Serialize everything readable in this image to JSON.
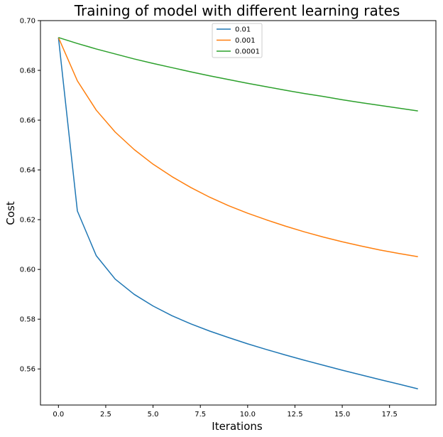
{
  "chart_data": {
    "type": "line",
    "title": "Training of model with different learning rates",
    "xlabel": "Iterations",
    "ylabel": "Cost",
    "xlim": [
      -0.95,
      19.95
    ],
    "ylim": [
      0.5455,
      0.7
    ],
    "xticks": [
      0.0,
      2.5,
      5.0,
      7.5,
      10.0,
      12.5,
      15.0,
      17.5
    ],
    "xtick_labels": [
      "0.0",
      "2.5",
      "5.0",
      "7.5",
      "10.0",
      "12.5",
      "15.0",
      "17.5"
    ],
    "yticks": [
      0.56,
      0.58,
      0.6,
      0.62,
      0.64,
      0.66,
      0.68,
      0.7
    ],
    "ytick_labels": [
      "0.56",
      "0.58",
      "0.60",
      "0.62",
      "0.64",
      "0.66",
      "0.68",
      "0.70"
    ],
    "grid": false,
    "legend_position": "top-center",
    "x": [
      0,
      1,
      2,
      3,
      4,
      5,
      6,
      7,
      8,
      9,
      10,
      11,
      12,
      13,
      14,
      15,
      16,
      17,
      18,
      19
    ],
    "series": [
      {
        "name": "0.01",
        "color": "#1f77b4",
        "values": [
          0.6932,
          0.6235,
          0.6055,
          0.5961,
          0.59,
          0.5853,
          0.5814,
          0.5781,
          0.5752,
          0.5726,
          0.5701,
          0.5678,
          0.5656,
          0.5635,
          0.5615,
          0.5595,
          0.5576,
          0.5557,
          0.5539,
          0.552
        ]
      },
      {
        "name": "0.001",
        "color": "#ff7f0e",
        "values": [
          0.6932,
          0.6758,
          0.664,
          0.6552,
          0.6482,
          0.6423,
          0.6373,
          0.6329,
          0.629,
          0.6256,
          0.6226,
          0.6199,
          0.6174,
          0.6151,
          0.613,
          0.6111,
          0.6094,
          0.6078,
          0.6064,
          0.6051
        ]
      },
      {
        "name": "0.0001",
        "color": "#2ca02c",
        "values": [
          0.6932,
          0.6908,
          0.6886,
          0.6866,
          0.6846,
          0.6828,
          0.6811,
          0.6794,
          0.6778,
          0.6763,
          0.6748,
          0.6734,
          0.672,
          0.6707,
          0.6695,
          0.6682,
          0.667,
          0.6659,
          0.6648,
          0.6637
        ]
      }
    ]
  }
}
